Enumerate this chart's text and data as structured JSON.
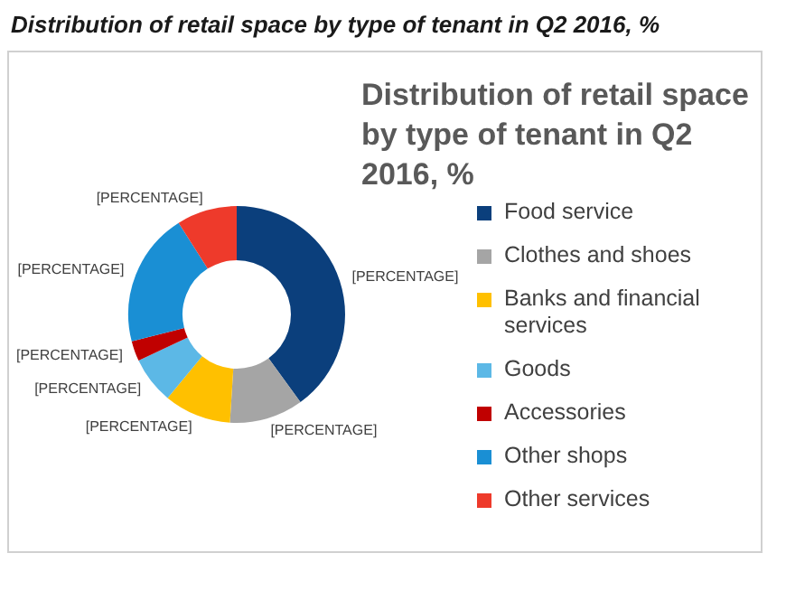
{
  "chart_data": {
    "type": "donut",
    "title": "Distribution of retail space by type of tenant in Q2 2016, %",
    "subtitle": "Distribution of retail space by type of tenant in Q2 2016, %",
    "categories": [
      "Food service",
      "Clothes and shoes",
      "Banks and financial services",
      "Goods",
      "Accessories",
      "Other shops",
      "Other services"
    ],
    "values": [
      40,
      11,
      10,
      7,
      3,
      20,
      9
    ],
    "colors": [
      "#0b3f7c",
      "#a5a5a5",
      "#ffc000",
      "#5cb8e6",
      "#c00000",
      "#1a8fd4",
      "#ee3a2b"
    ],
    "value_labels": [
      "[PERCENTAGE]",
      "[PERCENTAGE]",
      "[PERCENTAGE]",
      "[PERCENTAGE]",
      "[PERCENTAGE]",
      "[PERCENTAGE]",
      "[PERCENTAGE]"
    ],
    "legend": "right"
  }
}
